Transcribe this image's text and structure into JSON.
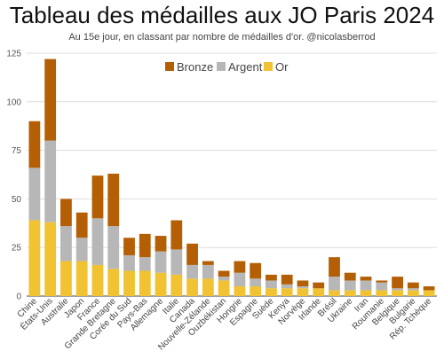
{
  "header": {
    "title": "Tableau des médailles aux JO Paris 2024",
    "subtitle": "Au 15e jour, en classant par nombre de médailles d'or. @nicolasberrod"
  },
  "colors": {
    "Or": "#f1c232",
    "Argent": "#b7b7b7",
    "Bronze": "#b45f06",
    "grid": "#dddddd",
    "axis": "#444444"
  },
  "chart_data": {
    "type": "bar",
    "stacked": true,
    "title": "Tableau des médailles aux JO Paris 2024",
    "subtitle": "Au 15e jour, en classant par nombre de médailles d'or. @nicolasberrod",
    "ylim": [
      0,
      125
    ],
    "yticks": [
      0,
      25,
      50,
      75,
      100,
      125
    ],
    "grid": true,
    "legend": "top-right",
    "legend_order": [
      "Bronze",
      "Argent",
      "Or"
    ],
    "categories": [
      "Chine",
      "États-Unis",
      "Australie",
      "Japon",
      "France",
      "Grande Bretagne",
      "Corée du Sud",
      "Pays-Bas",
      "Allemagne",
      "Italie",
      "Canada",
      "Nouvelle-Zélande",
      "Ouzbékistan",
      "Hongrie",
      "Espagne",
      "Suède",
      "Kenya",
      "Norvège",
      "Irlande",
      "Brésil",
      "Ukraine",
      "Iran",
      "Roumanie",
      "Belgique",
      "Bulgarie",
      "Rép. Tchèque"
    ],
    "series": [
      {
        "name": "Or",
        "values": [
          39,
          38,
          18,
          18,
          16,
          14,
          13,
          13,
          12,
          11,
          9,
          9,
          8,
          5,
          5,
          4,
          4,
          4,
          4,
          3,
          3,
          3,
          3,
          3,
          3,
          3
        ]
      },
      {
        "name": "Argent",
        "values": [
          27,
          42,
          18,
          12,
          24,
          22,
          8,
          7,
          11,
          13,
          7,
          7,
          2,
          7,
          4,
          4,
          2,
          1,
          0,
          7,
          5,
          5,
          4,
          1,
          1,
          0
        ]
      },
      {
        "name": "Bronze",
        "values": [
          24,
          42,
          14,
          13,
          22,
          27,
          9,
          12,
          8,
          15,
          11,
          2,
          3,
          6,
          8,
          3,
          5,
          3,
          3,
          10,
          4,
          2,
          1,
          6,
          3,
          2
        ]
      }
    ]
  }
}
